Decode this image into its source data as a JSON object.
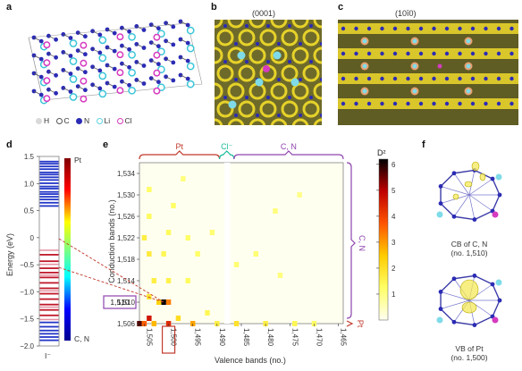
{
  "panel_labels": [
    "a",
    "b",
    "c",
    "d",
    "e",
    "f"
  ],
  "panel_b_title": "(0001)",
  "panel_c_title": "(10ī0)",
  "legend_a": [
    {
      "symbol": "H",
      "color": "#d9d9d9"
    },
    {
      "symbol": "C",
      "color": "#ffffff"
    },
    {
      "symbol": "N",
      "color": "#2b2bb5"
    },
    {
      "symbol": "Li",
      "color": "#5fd3e0"
    },
    {
      "symbol": "Cl",
      "color": "#d63bc0"
    }
  ],
  "panel_d": {
    "ylabel": "Energy (eV)",
    "yticks": [
      "1.5",
      "1.0",
      "0.5",
      "0",
      "−0.5",
      "−1.0",
      "−1.5",
      "−2.0"
    ],
    "ytick_values": [
      1.5,
      1.0,
      0.5,
      0.0,
      -0.5,
      -1.0,
      -1.5,
      -2.0
    ],
    "colorbar_top": "Pt",
    "colorbar_bottom": "C, N",
    "bottom_label": "I⁻",
    "blue_levels": [
      1.42,
      1.38,
      1.33,
      1.28,
      1.22,
      1.18,
      1.13,
      1.08,
      1.02,
      0.96,
      0.92,
      0.86,
      0.82,
      0.77,
      0.72,
      0.66,
      0.6,
      -1.55,
      -1.63,
      -1.7,
      -1.76,
      -1.82,
      -1.88
    ],
    "white_gap": [
      0.5,
      0.0
    ],
    "red_levels": [
      -0.3,
      -0.42,
      -0.55,
      -0.63,
      -0.72,
      -0.82,
      -0.92,
      -1.02,
      -1.12,
      -1.22,
      -1.32,
      -1.42
    ],
    "pink_levels": [
      -0.22,
      -0.48,
      -0.68,
      -0.97,
      -1.27,
      -1.5
    ]
  },
  "panel_e": {
    "ylabel": "Conduction bands (no.)",
    "xlabel": "Valence bands (no.)",
    "yticks": [
      "1,534",
      "1,530",
      "1,526",
      "1,522",
      "1,518",
      "1,514",
      "1,510",
      "1,506"
    ],
    "ytick_values": [
      1534,
      1530,
      1526,
      1522,
      1518,
      1514,
      1510,
      1506
    ],
    "xticks": [
      "1,505",
      "1,500",
      "1,495",
      "1,490",
      "1,485",
      "1,480",
      "1,475",
      "1,470",
      "1,465"
    ],
    "xtick_values": [
      1505,
      1500,
      1495,
      1490,
      1485,
      1480,
      1475,
      1470,
      1465
    ],
    "highlight_y": "1,510",
    "highlight_x": "1,500",
    "top_brackets": [
      {
        "label": "Pt",
        "color": "#c0392b"
      },
      {
        "label": "Cl⁻",
        "color": "#1abc9c"
      },
      {
        "label": "C, N",
        "color": "#8e44ad"
      }
    ],
    "right_brackets": [
      {
        "label": "C, N",
        "color": "#8e44ad"
      },
      {
        "label": "Pt",
        "color": "#c0392b"
      }
    ],
    "colorbar_title": "D²",
    "colorbar_ticks": [
      "6",
      "5",
      "4",
      "3",
      "2",
      "1"
    ],
    "colorbar_tick_values": [
      6,
      5,
      4,
      3,
      2,
      1
    ]
  },
  "panel_f": {
    "top_caption_1": "CB of C, N",
    "top_caption_2": "(no. 1,510)",
    "bottom_caption_1": "VB of Pt",
    "bottom_caption_2": "(no. 1,500)"
  },
  "chart_data": [
    {
      "type": "bar",
      "title": "",
      "xlabel": "",
      "ylabel": "Energy (eV)",
      "ylim": [
        -2.0,
        1.5
      ],
      "series": [
        {
          "name": "Pt",
          "values": []
        },
        {
          "name": "C, N",
          "values": []
        }
      ]
    },
    {
      "type": "heatmap",
      "title": "",
      "xlabel": "Valence bands (no.)",
      "ylabel": "Conduction bands (no.)",
      "xlim": [
        1506,
        1464
      ],
      "ylim": [
        1506,
        1536
      ],
      "colorbar": "D²",
      "clim": [
        0,
        6
      ],
      "cells": [
        [
          1501,
          1510,
          6.0
        ],
        [
          1500,
          1510,
          3.2
        ],
        [
          1502,
          1510,
          2.2
        ],
        [
          1504,
          1507,
          4.5
        ],
        [
          1506,
          1506,
          5.5
        ],
        [
          1505,
          1506,
          3.5
        ],
        [
          1500,
          1506,
          4.2
        ],
        [
          1503,
          1506,
          2.6
        ],
        [
          1495,
          1506,
          2.8
        ],
        [
          1490,
          1506,
          1.6
        ],
        [
          1498,
          1507,
          2.0
        ],
        [
          1492,
          1508,
          1.4
        ],
        [
          1486,
          1506,
          1.9
        ],
        [
          1480,
          1506,
          1.6
        ],
        [
          1474,
          1506,
          1.4
        ],
        [
          1470,
          1506,
          1.2
        ],
        [
          1504,
          1511,
          1.8
        ],
        [
          1503,
          1514,
          1.6
        ],
        [
          1500,
          1514,
          1.5
        ],
        [
          1496,
          1514,
          1.3
        ],
        [
          1504,
          1519,
          1.7
        ],
        [
          1501,
          1519,
          1.4
        ],
        [
          1494,
          1519,
          1.2
        ],
        [
          1482,
          1519,
          1.1
        ],
        [
          1505,
          1522,
          1.6
        ],
        [
          1500,
          1523,
          1.3
        ],
        [
          1496,
          1522,
          1.2
        ],
        [
          1491,
          1523,
          1.1
        ],
        [
          1504,
          1526,
          1.3
        ],
        [
          1499,
          1528,
          1.2
        ],
        [
          1478,
          1527,
          1.0
        ],
        [
          1504,
          1531,
          1.2
        ],
        [
          1497,
          1533,
          1.0
        ],
        [
          1473,
          1530,
          0.9
        ],
        [
          1486,
          1517,
          1.1
        ],
        [
          1477,
          1515,
          1.0
        ]
      ]
    }
  ]
}
